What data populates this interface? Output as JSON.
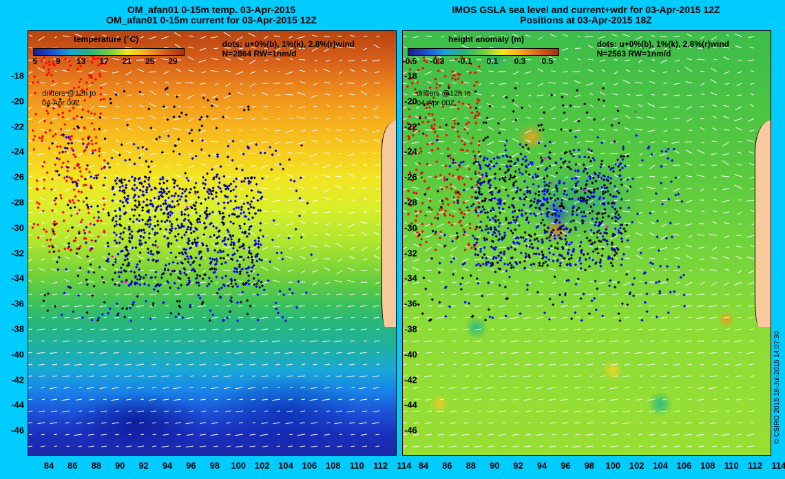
{
  "left_panel": {
    "title_line1": "OM_afan01 0-15m temp. 03-Apr-2015",
    "title_line2": "OM_afan01 0-15m current for 03-Apr-2015 12Z",
    "colorbar_title": "temperature (°C)",
    "colorbar_ticks": [
      "5",
      "9",
      "13",
      "17",
      "21",
      "25",
      "29"
    ],
    "info_line1": "dots: u+0%(b), 1%(k), 2.8%(r)wind",
    "info_line2": "N=2864 RW=1nm/d",
    "drifters_line1": "drifters @12h to",
    "drifters_line2": "04-Apr 00Z"
  },
  "right_panel": {
    "title_line1": "IMOS GSLA sea level and current+wdr for 03-Apr-2015 12Z",
    "title_line2": "Positions at 03-Apr-2015 18Z",
    "colorbar_title": "height anomaly (m)",
    "colorbar_ticks": [
      "-0.5",
      "-0.3",
      "-0.1",
      "0.1",
      "0.3",
      "0.5"
    ],
    "info_line1": "dots: u+0%(b), 1%(k), 2.8%(r)wind",
    "info_line2": "N=2563 RW=1nm/d",
    "drifters_line1": "drifters @12h to",
    "drifters_line2": "04-Apr 00Z"
  },
  "axes": {
    "x_ticks": [
      "84",
      "86",
      "88",
      "90",
      "92",
      "94",
      "96",
      "98",
      "100",
      "102",
      "104",
      "106",
      "108",
      "110",
      "112",
      "114"
    ],
    "y_ticks_left": [
      "-18",
      "-20",
      "-22",
      "-24",
      "-26",
      "-28",
      "-30",
      "-32",
      "-34",
      "-36",
      "-38",
      "-40",
      "-42",
      "-44",
      "-46"
    ],
    "y_ticks_right": [
      "-18",
      "-20",
      "-22",
      "-24",
      "-26",
      "-28",
      "-30",
      "-32",
      "-34",
      "-36",
      "-38",
      "-40",
      "-42",
      "-44",
      "-46"
    ]
  },
  "credit": "© CSIRO 2015   18-Jul-2015 14:07:30",
  "colors": {
    "background": "#00ccff",
    "dot_blue": "#0000ff",
    "dot_black": "#000000",
    "dot_red": "#ff0000",
    "dot_magenta": "#ff00ff",
    "arrow": "#ffffff",
    "land": "#f8c99a"
  }
}
